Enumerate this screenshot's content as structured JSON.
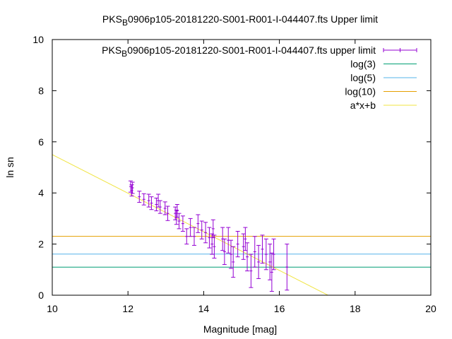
{
  "chart_data": {
    "type": "scatter",
    "title": {
      "prefix": "PKS",
      "subscript": "B",
      "suffix": "0906p105-20181220-S001-R001-I-044407.fts Upper limit"
    },
    "xlabel": "Magnitude [mag]",
    "ylabel": "ln sn",
    "xlim": [
      10,
      20
    ],
    "ylim": [
      0,
      10
    ],
    "xticks": [
      "10",
      "12",
      "14",
      "16",
      "18",
      "20"
    ],
    "yticks": [
      "0",
      "2",
      "4",
      "6",
      "8",
      "10"
    ],
    "grid": false,
    "legend_position": "top-right",
    "series": [
      {
        "name": {
          "prefix": "PKS",
          "subscript": "B",
          "suffix": "0906p105-20181220-S001-R001-I-044407.fts upper limit"
        },
        "style": "points-errorbars",
        "color": "#9400d3",
        "points": [
          [
            12.07,
            4.25,
            0.22
          ],
          [
            12.1,
            4.1,
            0.22
          ],
          [
            12.12,
            4.2,
            0.22
          ],
          [
            12.3,
            3.85,
            0.22
          ],
          [
            12.42,
            3.75,
            0.22
          ],
          [
            12.55,
            3.7,
            0.25
          ],
          [
            12.62,
            3.6,
            0.25
          ],
          [
            12.75,
            3.55,
            0.25
          ],
          [
            12.8,
            3.7,
            0.25
          ],
          [
            12.85,
            3.45,
            0.25
          ],
          [
            12.98,
            3.4,
            0.25
          ],
          [
            13.05,
            3.2,
            0.28
          ],
          [
            13.25,
            3.2,
            0.25
          ],
          [
            13.28,
            3.05,
            0.28
          ],
          [
            13.3,
            3.3,
            0.25
          ],
          [
            13.35,
            2.9,
            0.3
          ],
          [
            13.45,
            2.8,
            0.3
          ],
          [
            13.55,
            2.3,
            0.3
          ],
          [
            13.65,
            2.65,
            0.35
          ],
          [
            13.75,
            2.3,
            0.35
          ],
          [
            13.85,
            2.8,
            0.35
          ],
          [
            13.95,
            2.55,
            0.35
          ],
          [
            14.05,
            2.45,
            0.4
          ],
          [
            14.15,
            2.25,
            0.4
          ],
          [
            14.22,
            2.0,
            0.4
          ],
          [
            14.25,
            2.6,
            0.35
          ],
          [
            14.28,
            1.9,
            0.45
          ],
          [
            14.5,
            2.2,
            0.45
          ],
          [
            14.55,
            1.7,
            0.5
          ],
          [
            14.65,
            2.15,
            0.5
          ],
          [
            14.72,
            1.6,
            0.55
          ],
          [
            14.78,
            1.3,
            0.6
          ],
          [
            14.9,
            2.0,
            0.5
          ],
          [
            15.05,
            1.9,
            0.5
          ],
          [
            15.1,
            2.2,
            0.45
          ],
          [
            15.15,
            1.5,
            0.55
          ],
          [
            15.25,
            0.95,
            0.65
          ],
          [
            15.35,
            1.7,
            0.6
          ],
          [
            15.45,
            1.3,
            0.65
          ],
          [
            15.55,
            1.8,
            0.55
          ],
          [
            15.65,
            1.6,
            0.6
          ],
          [
            15.75,
            1.3,
            0.7
          ],
          [
            15.8,
            0.9,
            0.75
          ],
          [
            15.85,
            1.6,
            0.6
          ],
          [
            16.2,
            1.1,
            0.9
          ]
        ]
      },
      {
        "name": "log(3)",
        "style": "hline",
        "color": "#009e73",
        "value": 1.0986
      },
      {
        "name": "log(5)",
        "style": "hline",
        "color": "#56b4e9",
        "value": 1.6094
      },
      {
        "name": "log(10)",
        "style": "hline",
        "color": "#e69f00",
        "value": 2.3026
      },
      {
        "name": "a*x+b",
        "style": "line",
        "color": "#f0e442",
        "slope": -0.755,
        "intercept": 13.05
      }
    ]
  }
}
